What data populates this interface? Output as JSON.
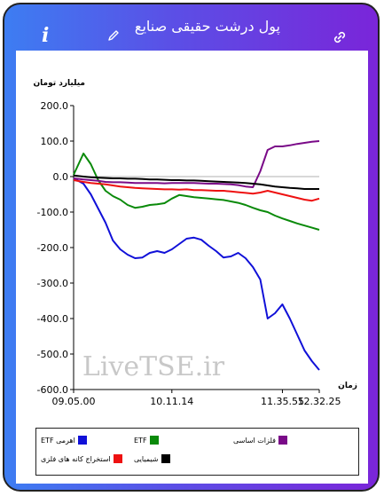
{
  "header": {
    "title": "پول درشت حقیقی صنایع",
    "info_label": "i"
  },
  "chart_data": {
    "type": "line",
    "ylabel": "میلیارد تومان",
    "xlabel": "زمان",
    "ylim": [
      -600,
      200
    ],
    "yticks": [
      "200.0",
      "100.0",
      "0.0",
      "-100.0",
      "-200.0",
      "-300.0",
      "-400.0",
      "-500.0",
      "-600.0"
    ],
    "xticks": [
      "09.05.00",
      "10.11.14",
      "11.35.55",
      "12.32.25"
    ],
    "x": [
      0,
      4,
      7,
      10,
      13,
      16,
      19,
      22,
      25,
      28,
      31,
      34,
      37,
      40,
      43,
      46,
      49,
      52,
      55,
      58,
      61,
      64,
      67,
      70,
      73,
      76,
      79,
      82,
      85,
      88,
      91,
      94,
      97,
      100
    ],
    "watermark": "LiveTSE.ir",
    "grid": false,
    "legend_position": "bottom",
    "series": [
      {
        "name": "اهرمی ETF",
        "color": "#1010d8",
        "values": [
          -5,
          -20,
          -50,
          -90,
          -130,
          -180,
          -205,
          -220,
          -230,
          -228,
          -215,
          -210,
          -215,
          -205,
          -190,
          -175,
          -172,
          -178,
          -195,
          -210,
          -228,
          -225,
          -215,
          -230,
          -255,
          -290,
          -400,
          -385,
          -360,
          -400,
          -445,
          -490,
          -520,
          -545
        ]
      },
      {
        "name": "ETF",
        "color": "#0a8a0a",
        "values": [
          5,
          65,
          35,
          -10,
          -40,
          -55,
          -65,
          -80,
          -88,
          -85,
          -80,
          -78,
          -75,
          -62,
          -52,
          -55,
          -58,
          -60,
          -62,
          -64,
          -66,
          -70,
          -74,
          -80,
          -88,
          -95,
          -100,
          -110,
          -118,
          -125,
          -132,
          -138,
          -144,
          -150
        ]
      },
      {
        "name": "فلزات اساسی",
        "color": "#7a0a88",
        "values": [
          -5,
          -8,
          -10,
          -12,
          -15,
          -16,
          -16,
          -17,
          -18,
          -18,
          -18,
          -18,
          -19,
          -18,
          -18,
          -18,
          -18,
          -19,
          -20,
          -20,
          -21,
          -22,
          -24,
          -28,
          -30,
          15,
          75,
          85,
          85,
          88,
          92,
          95,
          98,
          100
        ]
      },
      {
        "name": "استخراج کانه های فلزی",
        "color": "#ee1111",
        "values": [
          -10,
          -15,
          -18,
          -20,
          -22,
          -25,
          -28,
          -30,
          -32,
          -33,
          -34,
          -35,
          -36,
          -36,
          -37,
          -36,
          -38,
          -38,
          -39,
          -40,
          -40,
          -42,
          -44,
          -46,
          -48,
          -45,
          -40,
          -45,
          -50,
          -55,
          -60,
          -65,
          -68,
          -62
        ]
      },
      {
        "name": "شیمیایی",
        "color": "#000000",
        "values": [
          3,
          0,
          -2,
          -3,
          -4,
          -5,
          -5,
          -6,
          -6,
          -7,
          -8,
          -8,
          -9,
          -10,
          -10,
          -11,
          -11,
          -12,
          -13,
          -14,
          -15,
          -16,
          -17,
          -18,
          -20,
          -22,
          -25,
          -28,
          -30,
          -32,
          -33,
          -35,
          -35,
          -35
        ]
      }
    ]
  }
}
